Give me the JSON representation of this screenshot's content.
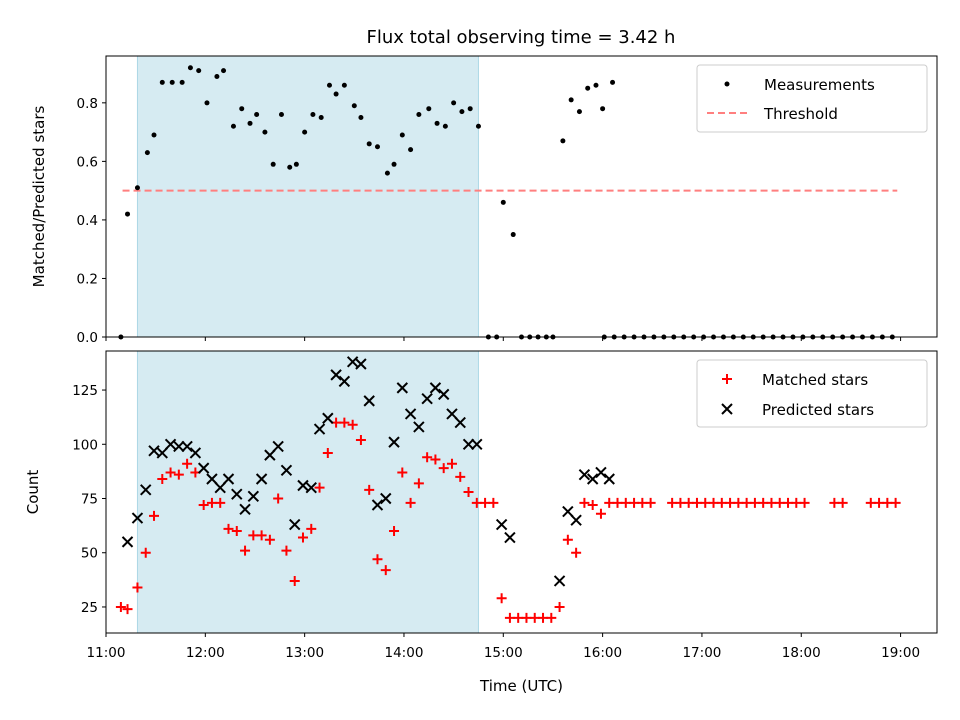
{
  "colors": {
    "span": "#add8e6",
    "threshold": "#ff7f7f",
    "measurement": "#000000",
    "matched": "#ff0000",
    "predicted": "#000000"
  },
  "xaxis": {
    "label": "Time (UTC)",
    "range": [
      "11:00",
      "19:22"
    ],
    "ticks": [
      "11:00",
      "12:00",
      "13:00",
      "14:00",
      "15:00",
      "16:00",
      "17:00",
      "18:00",
      "19:00"
    ]
  },
  "chart_data": [
    {
      "type": "scatter",
      "title": "Flux total observing time = 3.42 h",
      "xlabel": "",
      "ylabel": "Matched/Predicted stars",
      "ylim": [
        0,
        0.96
      ],
      "yticks": [
        "0.0",
        "0.2",
        "0.4",
        "0.6",
        "0.8"
      ],
      "highlight_span": [
        "11:19",
        "14:45"
      ],
      "threshold": 0.5,
      "threshold_x": [
        "11:10",
        "18:58"
      ],
      "legend": {
        "position": "top-right",
        "entries": [
          "Measurements",
          "Threshold"
        ]
      },
      "series": [
        {
          "name": "Measurements",
          "marker": "dot",
          "points": [
            [
              "11:09",
              0.0
            ],
            [
              "11:13",
              0.42
            ],
            [
              "11:19",
              0.51
            ],
            [
              "11:25",
              0.63
            ],
            [
              "11:29",
              0.69
            ],
            [
              "11:34",
              0.87
            ],
            [
              "11:40",
              0.87
            ],
            [
              "11:46",
              0.87
            ],
            [
              "11:51",
              0.92
            ],
            [
              "11:56",
              0.91
            ],
            [
              "12:01",
              0.8
            ],
            [
              "12:07",
              0.89
            ],
            [
              "12:11",
              0.91
            ],
            [
              "12:17",
              0.72
            ],
            [
              "12:22",
              0.78
            ],
            [
              "12:27",
              0.73
            ],
            [
              "12:31",
              0.76
            ],
            [
              "12:36",
              0.7
            ],
            [
              "12:41",
              0.59
            ],
            [
              "12:46",
              0.76
            ],
            [
              "12:51",
              0.58
            ],
            [
              "12:55",
              0.59
            ],
            [
              "13:00",
              0.7
            ],
            [
              "13:05",
              0.76
            ],
            [
              "13:10",
              0.75
            ],
            [
              "13:15",
              0.86
            ],
            [
              "13:19",
              0.83
            ],
            [
              "13:24",
              0.86
            ],
            [
              "13:30",
              0.79
            ],
            [
              "13:34",
              0.75
            ],
            [
              "13:39",
              0.66
            ],
            [
              "13:44",
              0.65
            ],
            [
              "13:50",
              0.56
            ],
            [
              "13:54",
              0.59
            ],
            [
              "13:59",
              0.69
            ],
            [
              "14:04",
              0.64
            ],
            [
              "14:09",
              0.76
            ],
            [
              "14:15",
              0.78
            ],
            [
              "14:20",
              0.73
            ],
            [
              "14:25",
              0.72
            ],
            [
              "14:30",
              0.8
            ],
            [
              "14:35",
              0.77
            ],
            [
              "14:40",
              0.78
            ],
            [
              "14:45",
              0.72
            ],
            [
              "14:51",
              0.0
            ],
            [
              "14:56",
              0.0
            ],
            [
              "15:00",
              0.46
            ],
            [
              "15:06",
              0.35
            ],
            [
              "15:11",
              0.0
            ],
            [
              "15:16",
              0.0
            ],
            [
              "15:21",
              0.0
            ],
            [
              "15:26",
              0.0
            ],
            [
              "15:30",
              0.0
            ],
            [
              "15:36",
              0.67
            ],
            [
              "15:41",
              0.81
            ],
            [
              "15:46",
              0.77
            ],
            [
              "15:51",
              0.85
            ],
            [
              "15:56",
              0.86
            ],
            [
              "16:00",
              0.78
            ],
            [
              "16:06",
              0.87
            ],
            [
              "16:01",
              0.0
            ],
            [
              "16:07",
              0.0
            ],
            [
              "16:13",
              0.0
            ],
            [
              "16:19",
              0.0
            ],
            [
              "16:25",
              0.0
            ],
            [
              "16:31",
              0.0
            ],
            [
              "16:37",
              0.0
            ],
            [
              "16:43",
              0.0
            ],
            [
              "16:49",
              0.0
            ],
            [
              "16:55",
              0.0
            ],
            [
              "17:01",
              0.0
            ],
            [
              "17:07",
              0.0
            ],
            [
              "17:13",
              0.0
            ],
            [
              "17:19",
              0.0
            ],
            [
              "17:25",
              0.0
            ],
            [
              "17:31",
              0.0
            ],
            [
              "17:37",
              0.0
            ],
            [
              "17:43",
              0.0
            ],
            [
              "17:49",
              0.0
            ],
            [
              "17:55",
              0.0
            ],
            [
              "18:01",
              0.0
            ],
            [
              "18:07",
              0.0
            ],
            [
              "18:13",
              0.0
            ],
            [
              "18:19",
              0.0
            ],
            [
              "18:25",
              0.0
            ],
            [
              "18:31",
              0.0
            ],
            [
              "18:37",
              0.0
            ],
            [
              "18:43",
              0.0
            ],
            [
              "18:49",
              0.0
            ],
            [
              "18:55",
              0.0
            ]
          ]
        },
        {
          "name": "Threshold",
          "marker": "dashed-line",
          "value": 0.5
        }
      ]
    },
    {
      "type": "scatter",
      "title": "",
      "xlabel": "Time (UTC)",
      "ylabel": "Count",
      "ylim": [
        13,
        143
      ],
      "yticks": [
        "25",
        "50",
        "75",
        "100",
        "125"
      ],
      "highlight_span": [
        "11:19",
        "14:45"
      ],
      "legend": {
        "position": "top-right",
        "entries": [
          "Matched stars",
          "Predicted stars"
        ]
      },
      "series": [
        {
          "name": "Matched stars",
          "marker": "plus",
          "points": [
            [
              "11:09",
              25
            ],
            [
              "11:13",
              24
            ],
            [
              "11:19",
              34
            ],
            [
              "11:24",
              50
            ],
            [
              "11:29",
              67
            ],
            [
              "11:34",
              84
            ],
            [
              "11:39",
              87
            ],
            [
              "11:44",
              86
            ],
            [
              "11:49",
              91
            ],
            [
              "11:54",
              87
            ],
            [
              "11:59",
              72
            ],
            [
              "12:04",
              73
            ],
            [
              "12:09",
              73
            ],
            [
              "12:14",
              61
            ],
            [
              "12:19",
              60
            ],
            [
              "12:24",
              51
            ],
            [
              "12:29",
              58
            ],
            [
              "12:34",
              58
            ],
            [
              "12:39",
              56
            ],
            [
              "12:44",
              75
            ],
            [
              "12:49",
              51
            ],
            [
              "12:54",
              37
            ],
            [
              "12:59",
              57
            ],
            [
              "13:04",
              61
            ],
            [
              "13:09",
              80
            ],
            [
              "13:14",
              96
            ],
            [
              "13:19",
              110
            ],
            [
              "13:24",
              110
            ],
            [
              "13:29",
              109
            ],
            [
              "13:34",
              102
            ],
            [
              "13:39",
              79
            ],
            [
              "13:44",
              47
            ],
            [
              "13:49",
              42
            ],
            [
              "13:54",
              60
            ],
            [
              "13:59",
              87
            ],
            [
              "14:04",
              73
            ],
            [
              "14:09",
              82
            ],
            [
              "14:14",
              94
            ],
            [
              "14:19",
              93
            ],
            [
              "14:24",
              89
            ],
            [
              "14:29",
              91
            ],
            [
              "14:34",
              85
            ],
            [
              "14:39",
              78
            ],
            [
              "14:44",
              73
            ],
            [
              "14:49",
              73
            ],
            [
              "14:54",
              73
            ],
            [
              "14:59",
              29
            ],
            [
              "15:04",
              20
            ],
            [
              "15:09",
              20
            ],
            [
              "15:14",
              20
            ],
            [
              "15:19",
              20
            ],
            [
              "15:24",
              20
            ],
            [
              "15:29",
              20
            ],
            [
              "15:34",
              25
            ],
            [
              "15:39",
              56
            ],
            [
              "15:44",
              50
            ],
            [
              "15:49",
              73
            ],
            [
              "15:54",
              72
            ],
            [
              "15:59",
              68
            ],
            [
              "16:04",
              73
            ],
            [
              "16:09",
              73
            ],
            [
              "16:14",
              73
            ],
            [
              "16:19",
              73
            ],
            [
              "16:24",
              73
            ],
            [
              "16:29",
              73
            ],
            [
              "16:42",
              73
            ],
            [
              "16:47",
              73
            ],
            [
              "16:52",
              73
            ],
            [
              "16:57",
              73
            ],
            [
              "17:02",
              73
            ],
            [
              "17:07",
              73
            ],
            [
              "17:12",
              73
            ],
            [
              "17:17",
              73
            ],
            [
              "17:22",
              73
            ],
            [
              "17:27",
              73
            ],
            [
              "17:32",
              73
            ],
            [
              "17:37",
              73
            ],
            [
              "17:42",
              73
            ],
            [
              "17:47",
              73
            ],
            [
              "17:52",
              73
            ],
            [
              "17:57",
              73
            ],
            [
              "18:02",
              73
            ],
            [
              "18:20",
              73
            ],
            [
              "18:25",
              73
            ],
            [
              "18:42",
              73
            ],
            [
              "18:47",
              73
            ],
            [
              "18:52",
              73
            ],
            [
              "18:57",
              73
            ]
          ]
        },
        {
          "name": "Predicted stars",
          "marker": "x",
          "points": [
            [
              "11:13",
              55
            ],
            [
              "11:19",
              66
            ],
            [
              "11:24",
              79
            ],
            [
              "11:29",
              97
            ],
            [
              "11:34",
              96
            ],
            [
              "11:39",
              100
            ],
            [
              "11:44",
              99
            ],
            [
              "11:49",
              99
            ],
            [
              "11:54",
              96
            ],
            [
              "11:59",
              89
            ],
            [
              "12:04",
              84
            ],
            [
              "12:09",
              80
            ],
            [
              "12:14",
              84
            ],
            [
              "12:19",
              77
            ],
            [
              "12:24",
              70
            ],
            [
              "12:29",
              76
            ],
            [
              "12:34",
              84
            ],
            [
              "12:39",
              95
            ],
            [
              "12:44",
              99
            ],
            [
              "12:49",
              88
            ],
            [
              "12:54",
              63
            ],
            [
              "12:59",
              81
            ],
            [
              "13:04",
              80
            ],
            [
              "13:09",
              107
            ],
            [
              "13:14",
              112
            ],
            [
              "13:19",
              132
            ],
            [
              "13:24",
              129
            ],
            [
              "13:29",
              138
            ],
            [
              "13:34",
              137
            ],
            [
              "13:39",
              120
            ],
            [
              "13:44",
              72
            ],
            [
              "13:49",
              75
            ],
            [
              "13:54",
              101
            ],
            [
              "13:59",
              126
            ],
            [
              "14:04",
              114
            ],
            [
              "14:09",
              108
            ],
            [
              "14:14",
              121
            ],
            [
              "14:19",
              126
            ],
            [
              "14:24",
              123
            ],
            [
              "14:29",
              114
            ],
            [
              "14:34",
              110
            ],
            [
              "14:39",
              100
            ],
            [
              "14:44",
              100
            ],
            [
              "14:59",
              63
            ],
            [
              "15:04",
              57
            ],
            [
              "15:34",
              37
            ],
            [
              "15:39",
              69
            ],
            [
              "15:44",
              65
            ],
            [
              "15:49",
              86
            ],
            [
              "15:54",
              84
            ],
            [
              "15:59",
              87
            ],
            [
              "16:04",
              84
            ]
          ]
        }
      ]
    }
  ]
}
